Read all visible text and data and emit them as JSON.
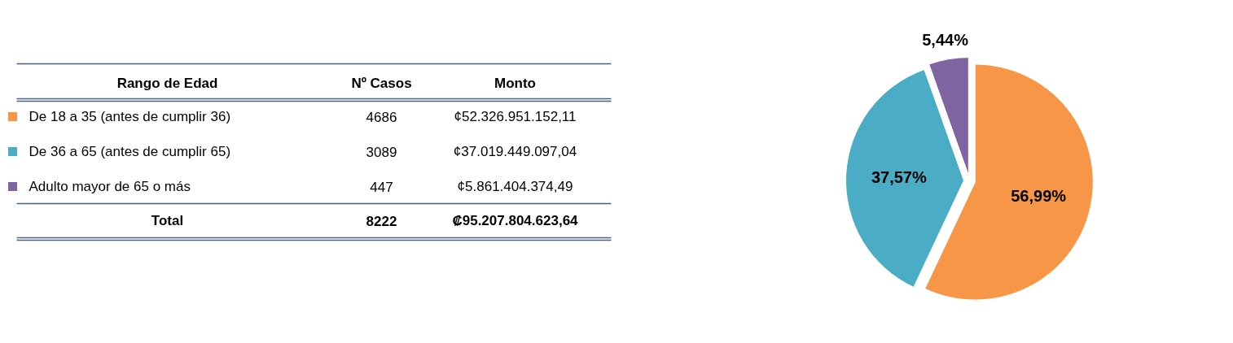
{
  "chart_data": {
    "type": "pie",
    "legend": "left",
    "legend_title": "Rango de Edad",
    "categories": [
      "De 18 a 35 (antes de cumplir 36)",
      "De 36 a 65 (antes de cumplir 65)",
      "Adulto mayor de 65 o más"
    ],
    "values": [
      56.99,
      37.57,
      5.44
    ],
    "colors": [
      "#f79646",
      "#4bacc6",
      "#8064a2"
    ],
    "value_labels": [
      "56,99%",
      "37,57%",
      "5,44%"
    ],
    "annotations": [
      "Nº Casos",
      "Monto",
      "4686",
      "¢52.326.951.152,11",
      "3089",
      "¢37.019.449.097,04",
      "447",
      "¢5.861.404.374,49",
      "Total",
      "8222",
      "₡95.207.804.623,64"
    ]
  }
}
